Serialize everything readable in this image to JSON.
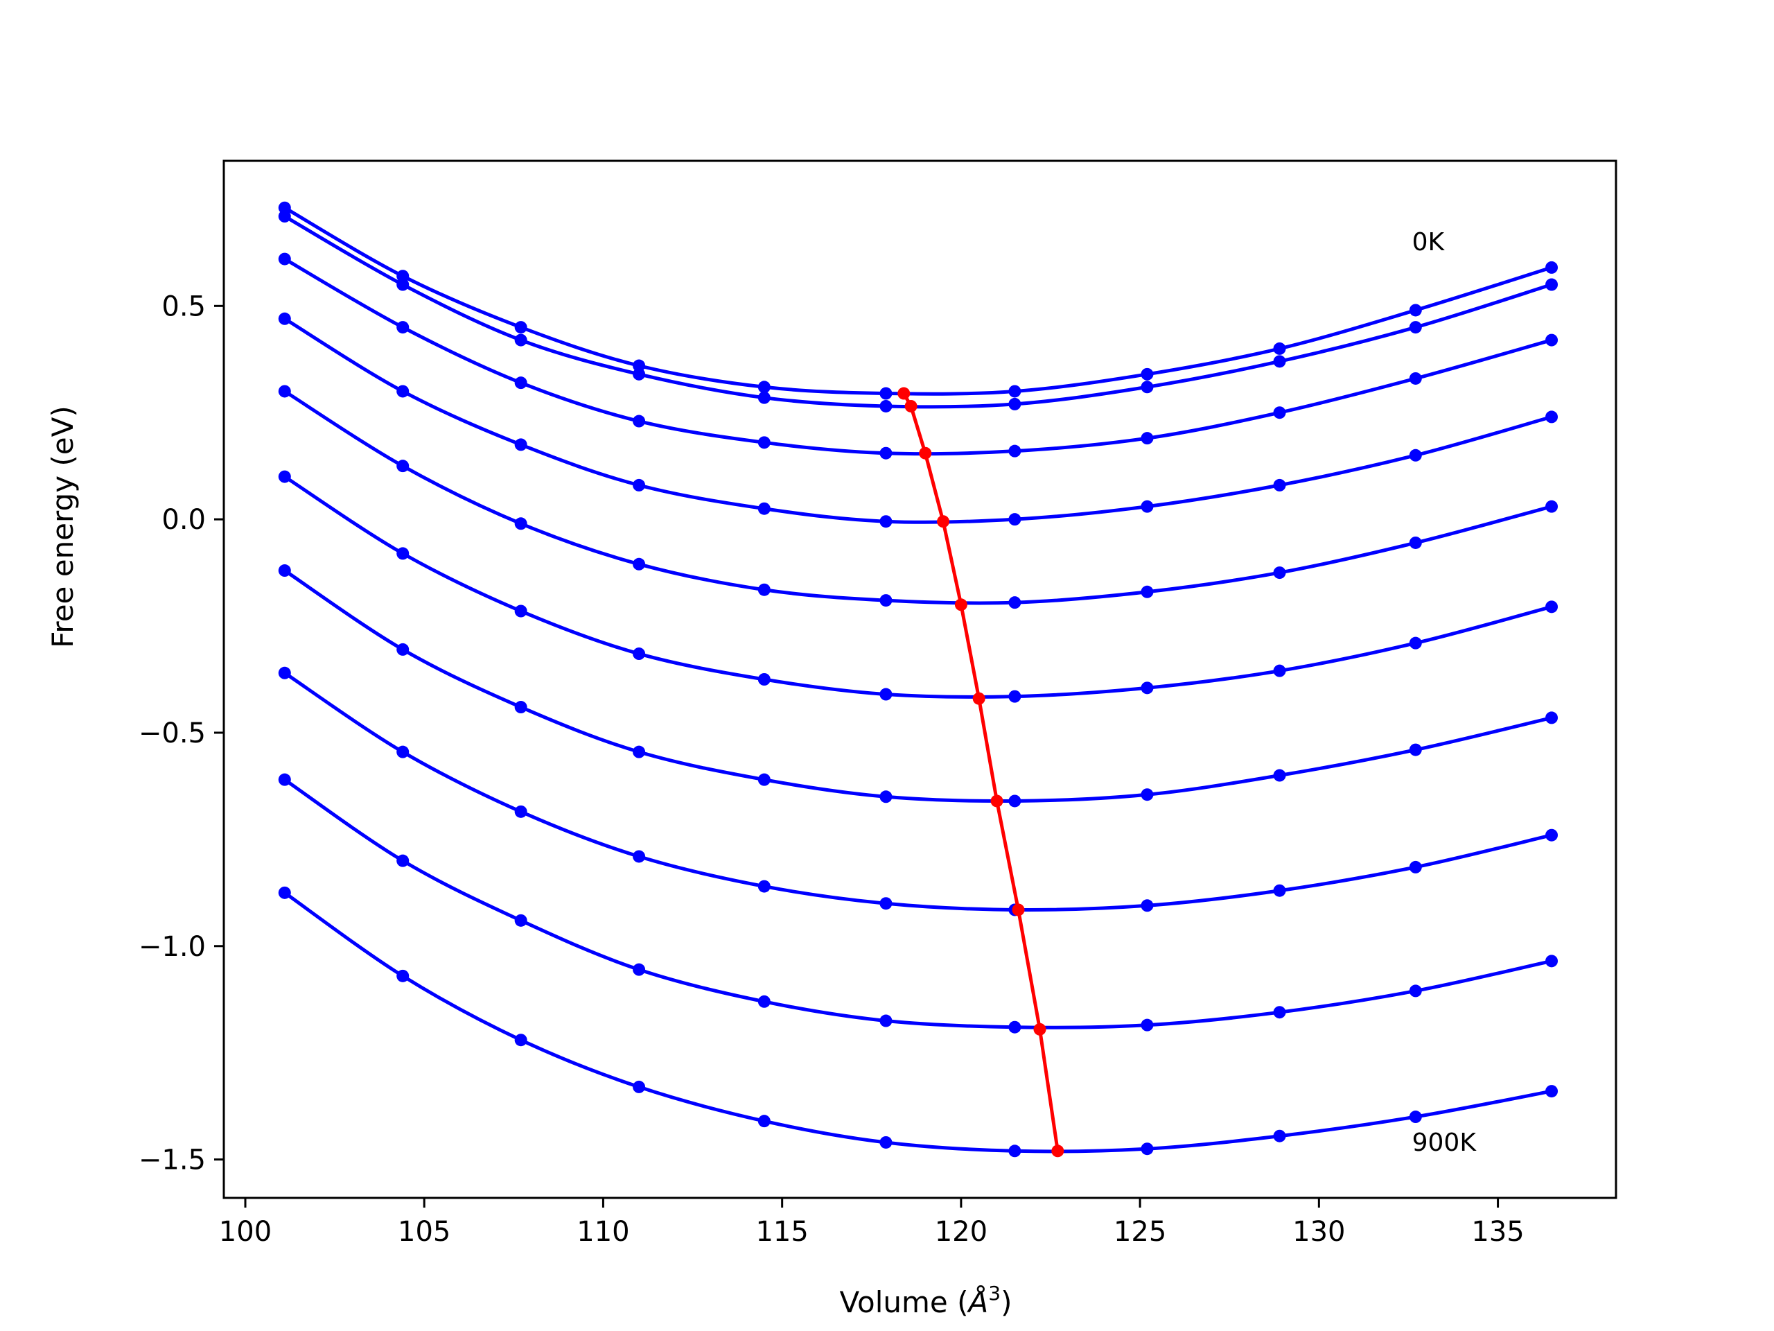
{
  "chart_data": {
    "type": "line",
    "title": "",
    "xlabel": "Volume (",
    "xlabel_symbol": "Å",
    "xlabel_exp": "3",
    "xlabel_close": ")",
    "ylabel": "Free energy (eV)",
    "xlim": [
      99.4,
      138.3
    ],
    "ylim": [
      -1.59,
      0.84
    ],
    "xticks": [
      100,
      105,
      110,
      115,
      120,
      125,
      130,
      135
    ],
    "xtick_labels": [
      "100",
      "105",
      "110",
      "115",
      "120",
      "125",
      "130",
      "135"
    ],
    "yticks": [
      -1.5,
      -1.0,
      -0.5,
      0.0,
      0.5
    ],
    "ytick_labels": [
      "−1.5",
      "−1.0",
      "−0.5",
      "0.0",
      "0.5"
    ],
    "grid": false,
    "colors": {
      "curves": "#0000ff",
      "minima": "#ff0000",
      "frame": "#000000"
    },
    "x": [
      101.1,
      104.4,
      107.7,
      111.0,
      114.5,
      117.9,
      121.5,
      125.2,
      128.9,
      132.7,
      136.5
    ],
    "series": [
      {
        "values": [
          0.73,
          0.57,
          0.45,
          0.36,
          0.31,
          0.295,
          0.3,
          0.34,
          0.4,
          0.49,
          0.59
        ]
      },
      {
        "values": [
          0.71,
          0.55,
          0.42,
          0.34,
          0.285,
          0.265,
          0.27,
          0.31,
          0.37,
          0.45,
          0.55
        ]
      },
      {
        "values": [
          0.61,
          0.45,
          0.32,
          0.23,
          0.18,
          0.155,
          0.16,
          0.19,
          0.25,
          0.33,
          0.42
        ]
      },
      {
        "values": [
          0.47,
          0.3,
          0.175,
          0.08,
          0.025,
          -0.005,
          0.0,
          0.03,
          0.08,
          0.15,
          0.24
        ]
      },
      {
        "values": [
          0.3,
          0.125,
          -0.01,
          -0.105,
          -0.165,
          -0.19,
          -0.195,
          -0.17,
          -0.125,
          -0.055,
          0.03
        ]
      },
      {
        "values": [
          0.1,
          -0.08,
          -0.215,
          -0.315,
          -0.375,
          -0.41,
          -0.415,
          -0.395,
          -0.355,
          -0.29,
          -0.205
        ]
      },
      {
        "values": [
          -0.12,
          -0.305,
          -0.44,
          -0.545,
          -0.61,
          -0.65,
          -0.66,
          -0.645,
          -0.6,
          -0.54,
          -0.465
        ]
      },
      {
        "values": [
          -0.36,
          -0.545,
          -0.685,
          -0.79,
          -0.86,
          -0.9,
          -0.915,
          -0.905,
          -0.87,
          -0.815,
          -0.74
        ]
      },
      {
        "values": [
          -0.61,
          -0.8,
          -0.94,
          -1.055,
          -1.13,
          -1.175,
          -1.19,
          -1.185,
          -1.155,
          -1.105,
          -1.035
        ]
      },
      {
        "values": [
          -0.875,
          -1.07,
          -1.22,
          -1.33,
          -1.41,
          -1.46,
          -1.48,
          -1.475,
          -1.445,
          -1.4,
          -1.34
        ]
      }
    ],
    "minima": {
      "x": [
        118.4,
        118.6,
        119.0,
        119.5,
        120.0,
        120.5,
        121.0,
        121.6,
        122.2,
        122.7
      ],
      "y": [
        0.295,
        0.265,
        0.155,
        -0.005,
        -0.2,
        -0.42,
        -0.66,
        -0.915,
        -1.195,
        -1.48
      ]
    },
    "annotations": [
      {
        "text": "0K",
        "x": 132.6,
        "y": 0.65
      },
      {
        "text": "900K",
        "x": 132.6,
        "y": -1.46
      }
    ]
  }
}
